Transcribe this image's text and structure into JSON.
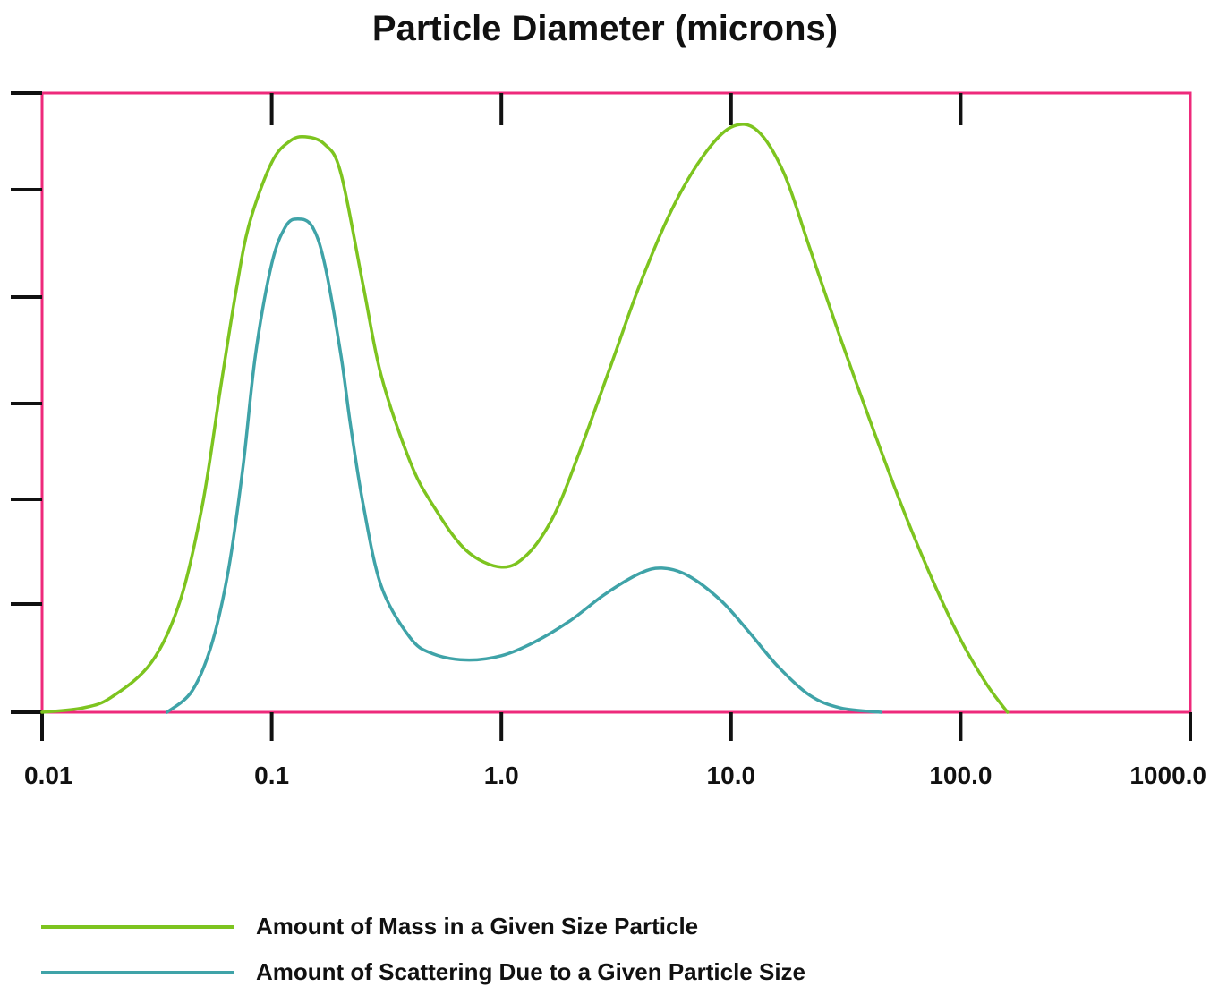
{
  "chart_data": {
    "type": "line",
    "title": "Particle Diameter (microns)",
    "xlabel": "",
    "ylabel": "",
    "x_scale": "log",
    "xlim": [
      0.01,
      1000.0
    ],
    "x_ticks": [
      "0.01",
      "0.1",
      "1.0",
      "10.0",
      "100.0",
      "1000.0"
    ],
    "x_tick_values": [
      0.01,
      0.1,
      1.0,
      10.0,
      100.0,
      1000.0
    ],
    "y_ticks_labeled": false,
    "grid": false,
    "frame_color": "#ee2a7b",
    "legend_position": "bottom-left",
    "series": [
      {
        "name": "Amount of Mass in a Given Size Particle",
        "color": "#7dc41f",
        "x": [
          0.01,
          0.015,
          0.02,
          0.03,
          0.04,
          0.05,
          0.06,
          0.07,
          0.08,
          0.1,
          0.12,
          0.14,
          0.17,
          0.2,
          0.25,
          0.3,
          0.4,
          0.5,
          0.7,
          1.0,
          1.3,
          1.7,
          2.2,
          3.0,
          4.0,
          5.5,
          7.5,
          10.0,
          13.0,
          17.0,
          22.0,
          30.0,
          40.0,
          55.0,
          75.0,
          100.0,
          130.0,
          160.0
        ],
        "y": [
          0.0,
          0.4,
          1.4,
          4.7,
          10.5,
          19.5,
          30.5,
          39.5,
          45.8,
          51.5,
          53.5,
          53.9,
          53.2,
          50.5,
          40.0,
          31.5,
          23.5,
          19.5,
          15.2,
          13.6,
          14.8,
          18.5,
          24.5,
          32.5,
          40.0,
          47.0,
          52.0,
          54.8,
          54.5,
          50.5,
          43.5,
          35.0,
          27.5,
          19.5,
          12.5,
          6.8,
          2.6,
          0.0
        ]
      },
      {
        "name": "Amount of Scattering Due to a Given Particle Size",
        "color": "#3fa3a8",
        "x": [
          0.035,
          0.045,
          0.055,
          0.065,
          0.075,
          0.085,
          0.1,
          0.115,
          0.13,
          0.15,
          0.17,
          0.2,
          0.22,
          0.25,
          0.3,
          0.4,
          0.5,
          0.7,
          1.0,
          1.4,
          2.0,
          2.8,
          4.0,
          5.0,
          6.5,
          9.0,
          12.0,
          16.0,
          22.0,
          30.0,
          45.0
        ],
        "y": [
          0.0,
          2.0,
          6.5,
          13.5,
          23.0,
          33.5,
          42.0,
          45.5,
          46.2,
          45.5,
          42.0,
          33.5,
          27.0,
          19.5,
          11.8,
          7.0,
          5.5,
          4.9,
          5.3,
          6.6,
          8.6,
          11.0,
          13.0,
          13.5,
          12.8,
          10.5,
          7.5,
          4.3,
          1.6,
          0.4,
          0.0
        ]
      }
    ]
  }
}
